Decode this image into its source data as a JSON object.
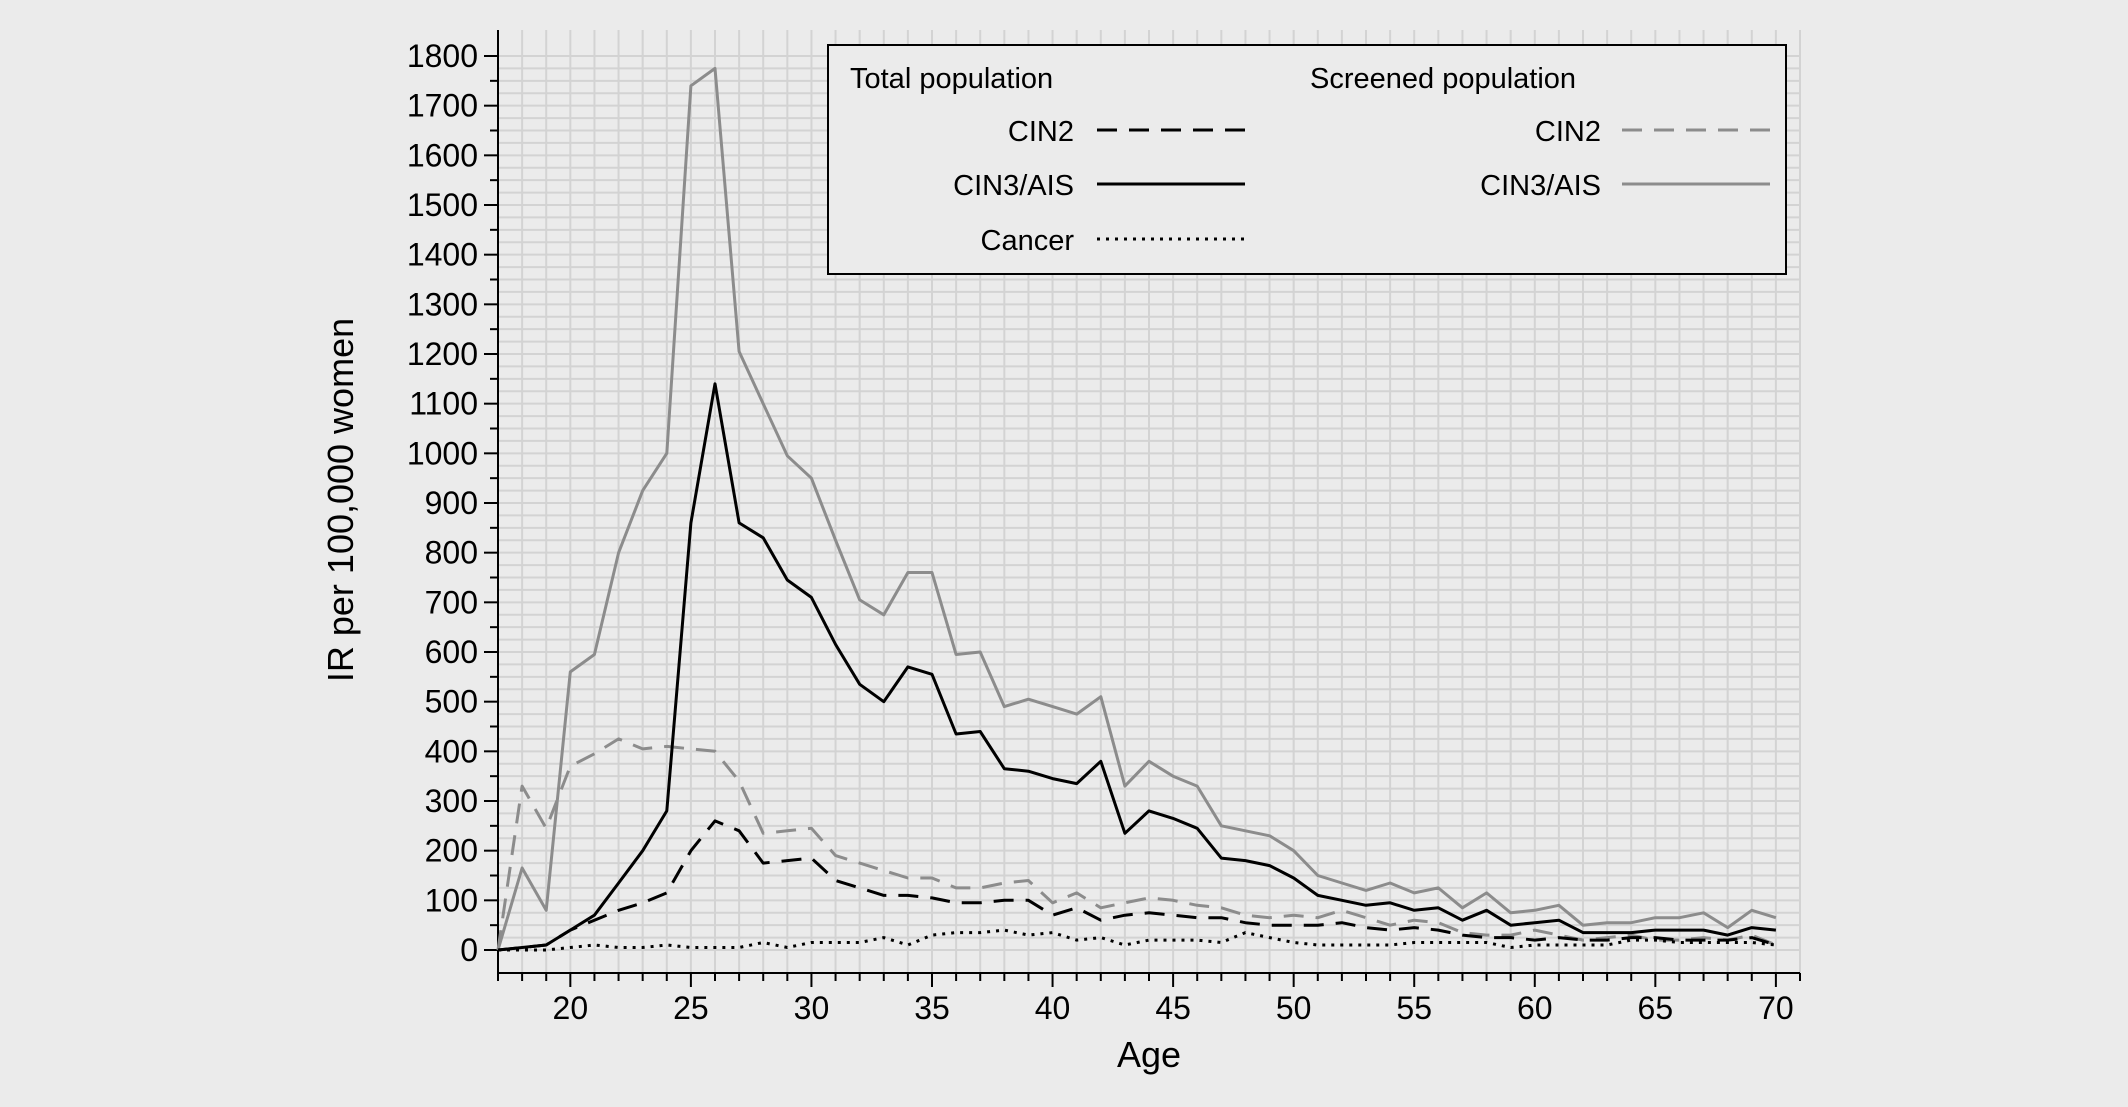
{
  "chart_data": {
    "type": "line",
    "title": "",
    "xlabel": "Age",
    "ylabel": "IR per 100,000 women",
    "xlim": [
      17,
      71
    ],
    "ylim": [
      0,
      1800
    ],
    "x_ticks": [
      20,
      25,
      30,
      35,
      40,
      45,
      50,
      55,
      60,
      65,
      70
    ],
    "y_ticks": [
      0,
      100,
      200,
      300,
      400,
      500,
      600,
      700,
      800,
      900,
      1000,
      1100,
      1200,
      1300,
      1400,
      1500,
      1600,
      1700,
      1800
    ],
    "grid": true,
    "legend": {
      "placement": "top-right",
      "groups": [
        {
          "title": "Total population",
          "items": [
            "CIN2",
            "CIN3/AIS",
            "Cancer"
          ]
        },
        {
          "title": "Screened population",
          "items": [
            "CIN2",
            "CIN3/AIS"
          ]
        }
      ]
    },
    "x": [
      17,
      18,
      19,
      20,
      21,
      22,
      23,
      24,
      25,
      26,
      27,
      28,
      29,
      30,
      31,
      32,
      33,
      34,
      35,
      36,
      37,
      38,
      39,
      40,
      41,
      42,
      43,
      44,
      45,
      46,
      47,
      48,
      49,
      50,
      51,
      52,
      53,
      54,
      55,
      56,
      57,
      58,
      59,
      60,
      61,
      62,
      63,
      64,
      65,
      66,
      67,
      68,
      69,
      70
    ],
    "series": [
      {
        "name": "CIN2",
        "group": "Total population",
        "color": "#000000",
        "dash": "dashed",
        "values": [
          0,
          5,
          10,
          40,
          60,
          80,
          95,
          115,
          200,
          260,
          240,
          175,
          180,
          185,
          140,
          125,
          110,
          110,
          105,
          95,
          95,
          100,
          100,
          70,
          85,
          60,
          70,
          75,
          70,
          65,
          65,
          55,
          50,
          50,
          50,
          55,
          45,
          40,
          45,
          40,
          30,
          25,
          25,
          20,
          25,
          20,
          20,
          25,
          25,
          20,
          20,
          20,
          25,
          10
        ]
      },
      {
        "name": "CIN3/AIS",
        "group": "Total population",
        "color": "#000000",
        "dash": "solid",
        "values": [
          0,
          5,
          10,
          40,
          70,
          135,
          200,
          280,
          860,
          1140,
          860,
          830,
          745,
          710,
          615,
          535,
          500,
          570,
          555,
          435,
          440,
          365,
          360,
          345,
          335,
          380,
          235,
          280,
          265,
          245,
          185,
          180,
          170,
          145,
          110,
          100,
          90,
          95,
          80,
          85,
          60,
          80,
          50,
          55,
          60,
          35,
          35,
          35,
          40,
          40,
          40,
          30,
          45,
          40
        ]
      },
      {
        "name": "Cancer",
        "group": "Total population",
        "color": "#000000",
        "dash": "dotted",
        "values": [
          0,
          0,
          0,
          5,
          10,
          5,
          5,
          10,
          5,
          5,
          5,
          15,
          5,
          15,
          15,
          15,
          25,
          10,
          30,
          35,
          35,
          40,
          30,
          35,
          20,
          25,
          10,
          20,
          20,
          20,
          15,
          35,
          25,
          15,
          10,
          10,
          10,
          10,
          15,
          15,
          15,
          15,
          5,
          10,
          10,
          10,
          10,
          20,
          20,
          15,
          15,
          15,
          15,
          10
        ]
      },
      {
        "name": "CIN2",
        "group": "Screened population",
        "color": "#8c8c8c",
        "dash": "dashed",
        "values": [
          0,
          330,
          245,
          370,
          395,
          425,
          405,
          410,
          405,
          400,
          340,
          235,
          240,
          245,
          190,
          175,
          160,
          145,
          145,
          125,
          125,
          135,
          140,
          95,
          115,
          85,
          95,
          105,
          100,
          90,
          85,
          70,
          65,
          70,
          65,
          80,
          65,
          50,
          60,
          55,
          35,
          30,
          30,
          40,
          30,
          20,
          25,
          30,
          20,
          20,
          25,
          20,
          30,
          10
        ]
      },
      {
        "name": "CIN3/AIS",
        "group": "Screened population",
        "color": "#8c8c8c",
        "dash": "solid",
        "values": [
          0,
          165,
          80,
          560,
          595,
          800,
          925,
          1000,
          1740,
          1775,
          1205,
          1100,
          995,
          950,
          825,
          705,
          675,
          760,
          760,
          595,
          600,
          490,
          505,
          490,
          475,
          510,
          330,
          380,
          350,
          330,
          250,
          240,
          230,
          200,
          150,
          135,
          120,
          135,
          115,
          125,
          85,
          115,
          75,
          80,
          90,
          50,
          55,
          55,
          65,
          65,
          75,
          45,
          80,
          65
        ]
      }
    ]
  }
}
